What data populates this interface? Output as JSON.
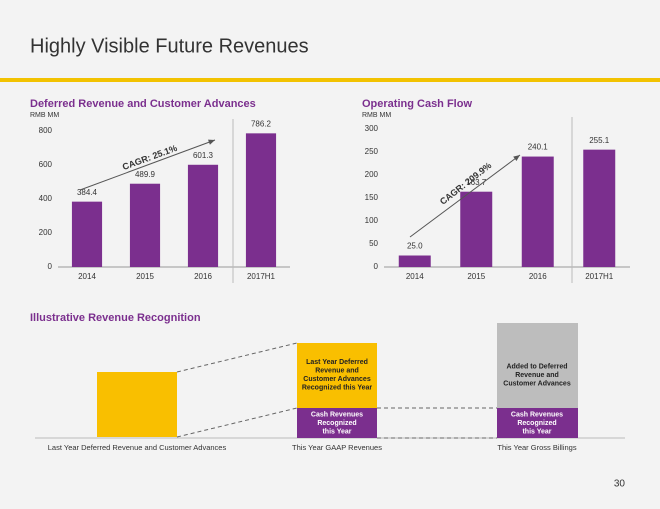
{
  "title": "Highly Visible Future Revenues",
  "chart_data": [
    {
      "type": "bar",
      "title": "Deferred Revenue and Customer Advances",
      "subtitle": "RMB MM",
      "categories": [
        "2014",
        "2015",
        "2016",
        "2017H1"
      ],
      "values": [
        384.4,
        489.9,
        601.3,
        786.2
      ],
      "color": "#7b2f8e",
      "ylim": [
        0,
        800
      ],
      "yticks": [
        0,
        200,
        400,
        600,
        800
      ],
      "annotation": "CAGR: 25.1%"
    },
    {
      "type": "bar",
      "title": "Operating Cash Flow",
      "subtitle": "RMB MM",
      "categories": [
        "2014",
        "2015",
        "2016",
        "2017H1"
      ],
      "values": [
        25.0,
        163.7,
        240.1,
        255.1
      ],
      "value_labels": [
        "25.0",
        "163.7",
        "240.1",
        "255.1"
      ],
      "color": "#7b2f8e",
      "ylim": [
        0,
        300
      ],
      "yticks": [
        0,
        50,
        100,
        150,
        200,
        250,
        300
      ],
      "annotation": "CAGR: 209.9%"
    }
  ],
  "diagram": {
    "title": "Illustrative Revenue Recognition",
    "middle_top": [
      "Last Year Deferred",
      "Revenue and",
      "Customer Advances",
      "Recognized this Year"
    ],
    "middle_bottom": [
      "Cash Revenues",
      "Recognized",
      "this Year"
    ],
    "right_top": [
      "Added to Deferred",
      "Revenue and",
      "Customer Advances"
    ],
    "right_bottom": [
      "Cash Revenues",
      "Recognized",
      "this Year"
    ],
    "labels": [
      "Last Year Deferred Revenue and Customer Advances",
      "This Year GAAP Revenues",
      "This Year Gross Billings"
    ]
  },
  "page_number": "30"
}
